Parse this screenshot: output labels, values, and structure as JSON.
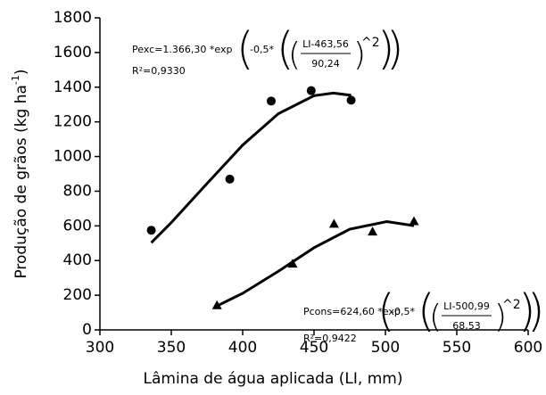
{
  "chart_data": {
    "type": "scatter",
    "x_label": "Lâmina de água aplicada (LI, mm)",
    "y_label": {
      "text": "Produção de grãos (kg ha",
      "sup": "-1",
      "end": ")"
    },
    "xlim": [
      300,
      600
    ],
    "xticks": [
      300,
      350,
      400,
      450,
      500,
      550,
      600
    ],
    "ylim": [
      0,
      1800
    ],
    "yticks": [
      0,
      200,
      400,
      600,
      800,
      1000,
      1200,
      1400,
      1600,
      1800
    ],
    "color": "#000000",
    "series": [
      {
        "marker": "circle",
        "x": [
          336,
          391,
          420,
          448,
          476
        ],
        "values": [
          575,
          870,
          1320,
          1380,
          1325
        ]
      },
      {
        "marker": "triangle",
        "x": [
          382,
          435,
          464,
          491,
          520
        ],
        "values": [
          140,
          380,
          610,
          565,
          625
        ]
      }
    ],
    "fits": [
      {
        "x": [
          336,
          350,
          375,
          400,
          425,
          450,
          463.56,
          476
        ],
        "values": [
          503,
          619,
          844,
          1066,
          1247,
          1351,
          1366,
          1353
        ]
      },
      {
        "x": [
          382,
          400,
          425,
          450,
          475,
          500.99,
          520
        ],
        "values": [
          138,
          211,
          338,
          474,
          581,
          625,
          601
        ]
      }
    ],
    "annotations": [
      {
        "lead": "Pexc=1.366,30 *exp",
        "factor": "-0,5*",
        "numerator": "LI-463,56",
        "denominator": "90,24",
        "power": "^2",
        "r2": "R²=0,9330"
      },
      {
        "lead": "Pcons=624,60 *exp",
        "factor": "-0,5*",
        "numerator": "LI-500,99",
        "denominator": "68,53",
        "power": "^2",
        "r2": "R²=0,9422"
      }
    ]
  }
}
